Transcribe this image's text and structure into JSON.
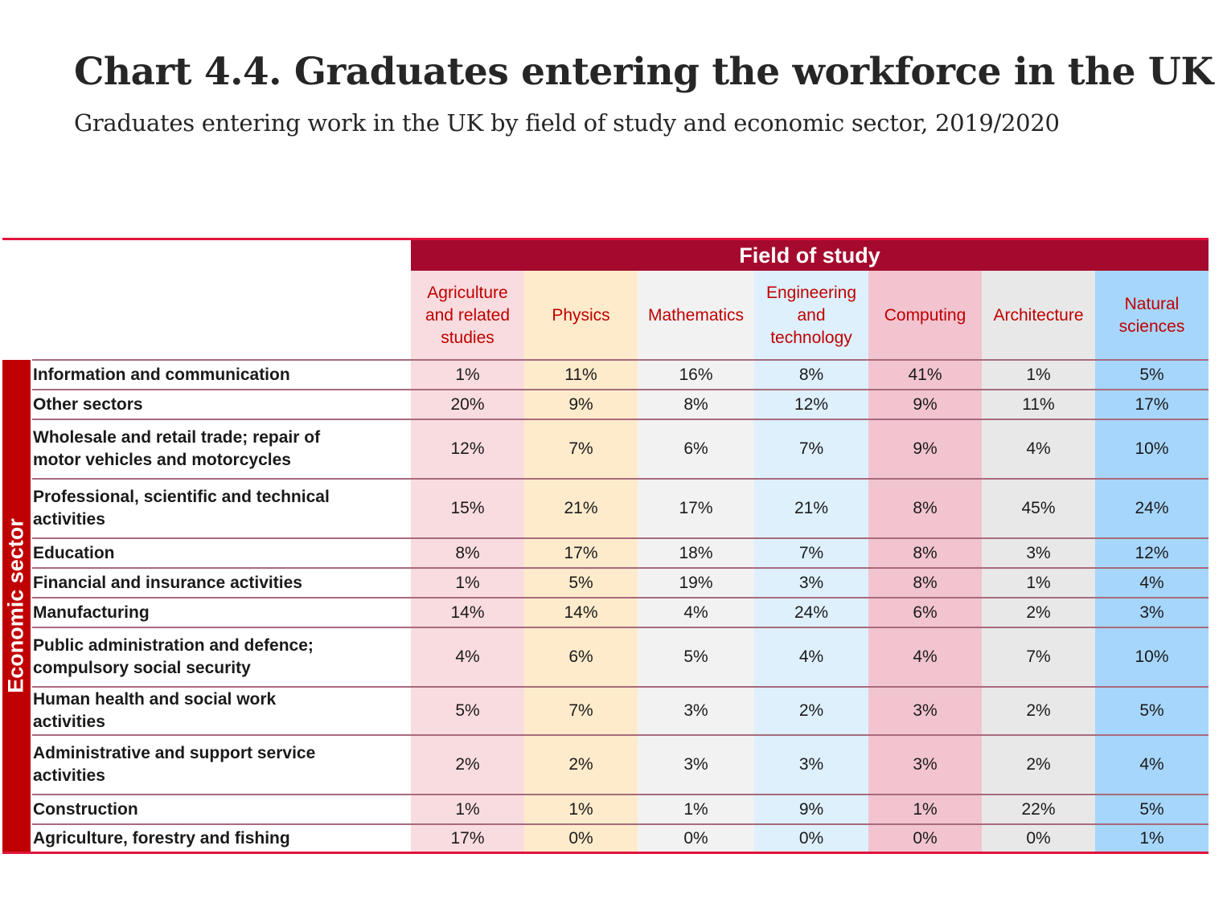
{
  "header": {
    "title": "Chart 4.4. Graduates entering the workforce in the UK",
    "subtitle": "Graduates entering work in the UK by field of study and economic sector, 2019/2020"
  },
  "colors": {
    "accent_rule": "#E0143C",
    "field_of_study_bar": "#A50A2E",
    "sector_bar": "#C00000",
    "header_text": "#C00000",
    "column_backgrounds": [
      "#F9DCDF",
      "#FEEBCB",
      "#F2F2F2",
      "#DEF0FC",
      "#F1C4D0",
      "#E8E8E8",
      "#A7D6FC"
    ]
  },
  "chart_data": {
    "type": "table",
    "title": "Chart 4.4. Graduates entering the workforce in the UK",
    "subtitle": "Graduates entering work in the UK by field of study and economic sector, 2019/2020",
    "column_group_label": "Field of study",
    "row_group_label": "Economic sector",
    "columns": [
      "Agriculture and related studies",
      "Physics",
      "Mathematics",
      "Engineering and technology",
      "Computing",
      "Architecture",
      "Natural sciences"
    ],
    "column_header_lines": [
      [
        "Agriculture",
        "and related",
        "studies"
      ],
      [
        "Physics"
      ],
      [
        "Mathematics"
      ],
      [
        "Engineering",
        "and",
        "technology"
      ],
      [
        "Computing"
      ],
      [
        "Architecture"
      ],
      [
        "Natural",
        "sciences"
      ]
    ],
    "rows": [
      {
        "label": "Information and communication",
        "label_lines": [
          "Information and communication"
        ],
        "values": [
          "1%",
          "11%",
          "16%",
          "8%",
          "41%",
          "1%",
          "5%"
        ]
      },
      {
        "label": "Other sectors",
        "label_lines": [
          "Other sectors"
        ],
        "values": [
          "20%",
          "9%",
          "8%",
          "12%",
          "9%",
          "11%",
          "17%"
        ]
      },
      {
        "label": "Wholesale and retail trade; repair of motor vehicles and motorcycles",
        "label_lines": [
          "Wholesale and retail trade; repair of",
          "motor vehicles and motorcycles"
        ],
        "values": [
          "12%",
          "7%",
          "6%",
          "7%",
          "9%",
          "4%",
          "10%"
        ]
      },
      {
        "label": "Professional, scientific and technical activities",
        "label_lines": [
          "Professional, scientific and technical",
          "activities"
        ],
        "values": [
          "15%",
          "21%",
          "17%",
          "21%",
          "8%",
          "45%",
          "24%"
        ]
      },
      {
        "label": "Education",
        "label_lines": [
          "Education"
        ],
        "values": [
          "8%",
          "17%",
          "18%",
          "7%",
          "8%",
          "3%",
          "12%"
        ]
      },
      {
        "label": "Financial and insurance activities",
        "label_lines": [
          "Financial and insurance activities"
        ],
        "values": [
          "1%",
          "5%",
          "19%",
          "3%",
          "8%",
          "1%",
          "4%"
        ]
      },
      {
        "label": "Manufacturing",
        "label_lines": [
          "Manufacturing"
        ],
        "values": [
          "14%",
          "14%",
          "4%",
          "24%",
          "6%",
          "2%",
          "3%"
        ]
      },
      {
        "label": "Public administration and defence; compulsory social security",
        "label_lines": [
          "Public administration and defence;",
          "compulsory social security"
        ],
        "values": [
          "4%",
          "6%",
          "5%",
          "4%",
          "4%",
          "7%",
          "10%"
        ]
      },
      {
        "label": "Human health and social work activities",
        "label_lines": [
          "Human health and social work",
          "activities"
        ],
        "values": [
          "5%",
          "7%",
          "3%",
          "2%",
          "3%",
          "2%",
          "5%"
        ]
      },
      {
        "label": "Administrative and support service activities",
        "label_lines": [
          "Administrative and support service",
          "activities"
        ],
        "values": [
          "2%",
          "2%",
          "3%",
          "3%",
          "3%",
          "2%",
          "4%"
        ]
      },
      {
        "label": "Construction",
        "label_lines": [
          "Construction"
        ],
        "values": [
          "1%",
          "1%",
          "1%",
          "9%",
          "1%",
          "22%",
          "5%"
        ]
      },
      {
        "label": "Agriculture, forestry and fishing",
        "label_lines": [
          "Agriculture, forestry and fishing"
        ],
        "values": [
          "17%",
          "0%",
          "0%",
          "0%",
          "0%",
          "0%",
          "1%"
        ]
      }
    ]
  }
}
